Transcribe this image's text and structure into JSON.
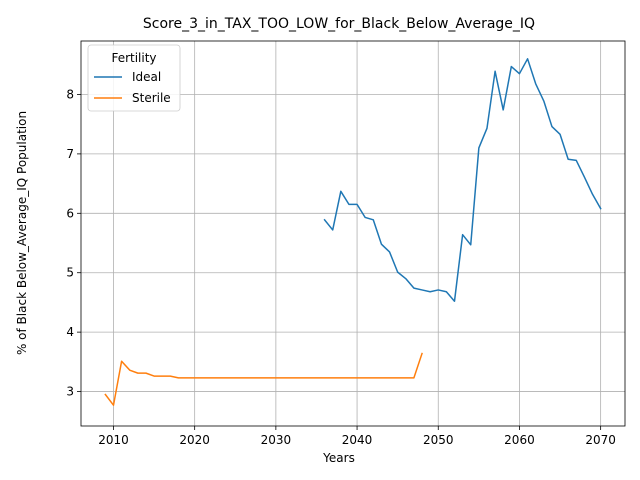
{
  "chart_data": {
    "type": "line",
    "title": "Score_3_in_TAX_TOO_LOW_for_Black_Below_Average_IQ",
    "xlabel": "Years",
    "ylabel": "% of Black Below_Average_IQ Population",
    "xlim": [
      2006,
      2073
    ],
    "ylim": [
      2.42,
      8.9
    ],
    "xticks": [
      2010,
      2020,
      2030,
      2040,
      2050,
      2060,
      2070
    ],
    "yticks": [
      3,
      4,
      5,
      6,
      7,
      8
    ],
    "grid": true,
    "legend": {
      "title": "Fertility",
      "placement": "top-left"
    },
    "series": [
      {
        "name": "Ideal",
        "color": "#1f77b4",
        "x": [
          2036,
          2037,
          2038,
          2039,
          2040,
          2041,
          2042,
          2043,
          2044,
          2045,
          2046,
          2047,
          2048,
          2049,
          2050,
          2051,
          2052,
          2053,
          2054,
          2055,
          2056,
          2057,
          2058,
          2059,
          2060,
          2061,
          2062,
          2063,
          2064,
          2065,
          2066,
          2067,
          2068,
          2069,
          2070
        ],
        "y": [
          5.89,
          5.72,
          6.37,
          6.15,
          6.15,
          5.93,
          5.89,
          5.48,
          5.35,
          5.01,
          4.9,
          4.74,
          4.71,
          4.68,
          4.71,
          4.68,
          4.52,
          5.64,
          5.47,
          7.1,
          7.43,
          8.39,
          7.74,
          8.47,
          8.35,
          8.6,
          8.18,
          7.89,
          7.46,
          7.33,
          6.91,
          6.89,
          6.61,
          6.32,
          6.08
        ]
      },
      {
        "name": "Sterile",
        "color": "#ff7f0e",
        "x": [
          2009,
          2010,
          2011,
          2012,
          2013,
          2014,
          2015,
          2016,
          2017,
          2018,
          2019,
          2020,
          2021,
          2022,
          2023,
          2024,
          2025,
          2026,
          2027,
          2028,
          2029,
          2030,
          2031,
          2032,
          2033,
          2034,
          2035,
          2036,
          2037,
          2038,
          2039,
          2040,
          2041,
          2042,
          2043,
          2044,
          2045,
          2046,
          2047,
          2048
        ],
        "y": [
          2.95,
          2.77,
          3.51,
          3.36,
          3.31,
          3.31,
          3.26,
          3.26,
          3.26,
          3.23,
          3.23,
          3.23,
          3.23,
          3.23,
          3.23,
          3.23,
          3.23,
          3.23,
          3.23,
          3.23,
          3.23,
          3.23,
          3.23,
          3.23,
          3.23,
          3.23,
          3.23,
          3.23,
          3.23,
          3.23,
          3.23,
          3.23,
          3.23,
          3.23,
          3.23,
          3.23,
          3.23,
          3.23,
          3.23,
          3.64
        ]
      }
    ]
  }
}
